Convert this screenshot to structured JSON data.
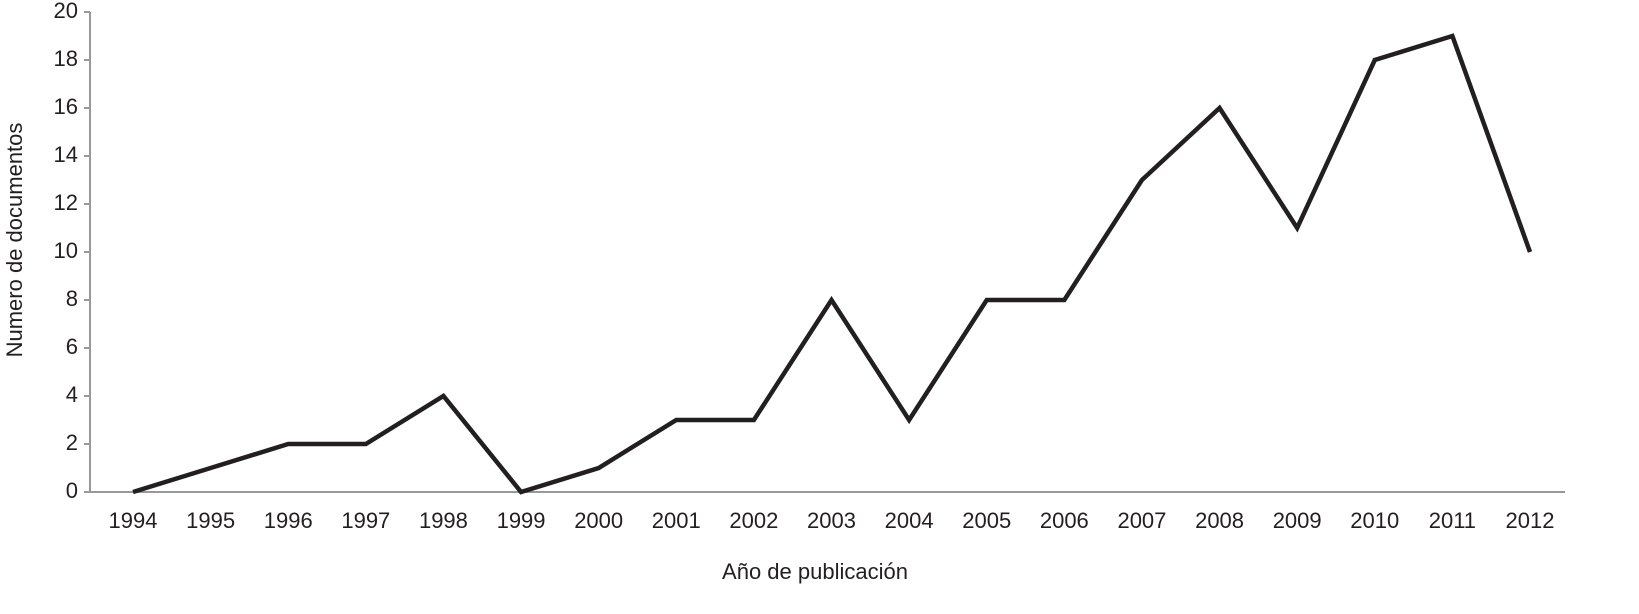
{
  "chart_data": {
    "type": "line",
    "x_label": "Año de publicación",
    "y_label": "Numero de documentos",
    "categories": [
      "1994",
      "1995",
      "1996",
      "1997",
      "1998",
      "1999",
      "2000",
      "2001",
      "2002",
      "2003",
      "2004",
      "2005",
      "2006",
      "2007",
      "2008",
      "2009",
      "2010",
      "2011",
      "2012"
    ],
    "values": [
      0,
      1,
      2,
      2,
      4,
      0,
      1,
      3,
      3,
      8,
      3,
      8,
      8,
      13,
      16,
      11,
      18,
      19,
      10
    ],
    "color": "#231f20",
    "ylim": [
      0,
      20
    ],
    "yticks": [
      0,
      2,
      4,
      6,
      8,
      10,
      12,
      14,
      16,
      18,
      20
    ]
  }
}
